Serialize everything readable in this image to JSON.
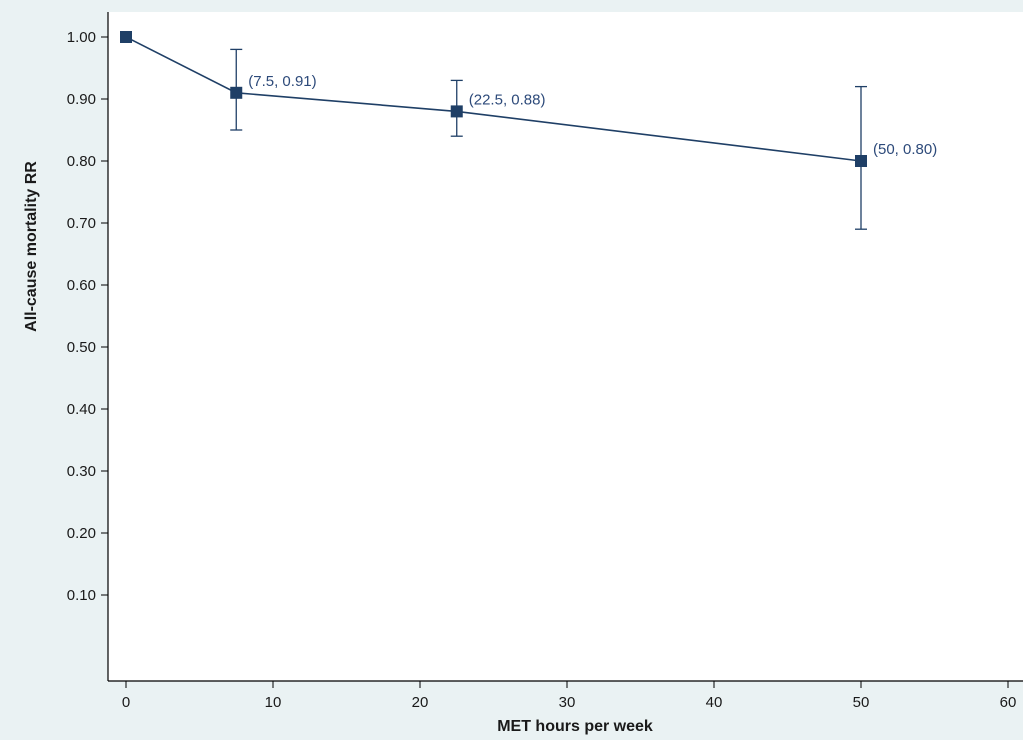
{
  "colors": {
    "outer_background": "#eaf2f3",
    "plot_background": "#ffffff",
    "series": "#1f3f66",
    "axis": "#000000"
  },
  "chart_data": {
    "type": "line",
    "title": "",
    "xlabel": "MET hours per week",
    "ylabel": "All-cause mortality RR",
    "xlim": [
      0,
      60
    ],
    "ylim": [
      0,
      1.0
    ],
    "x_ticks": [
      "0",
      "10",
      "20",
      "30",
      "40",
      "50",
      "60"
    ],
    "y_ticks": [
      "0.10",
      "0.20",
      "0.30",
      "0.40",
      "0.50",
      "0.60",
      "0.70",
      "0.80",
      "0.90",
      "1.00"
    ],
    "grid": false,
    "marker": "square",
    "series": [
      {
        "x": [
          0,
          7.5,
          22.5,
          50
        ],
        "y": [
          1.0,
          0.91,
          0.88,
          0.8
        ],
        "ci_lower": [
          null,
          0.85,
          0.84,
          0.69
        ],
        "ci_upper": [
          null,
          0.98,
          0.93,
          0.92
        ],
        "labels": [
          "",
          "(7.5, 0.91)",
          "(22.5, 0.88)",
          "(50, 0.80)"
        ]
      }
    ]
  }
}
